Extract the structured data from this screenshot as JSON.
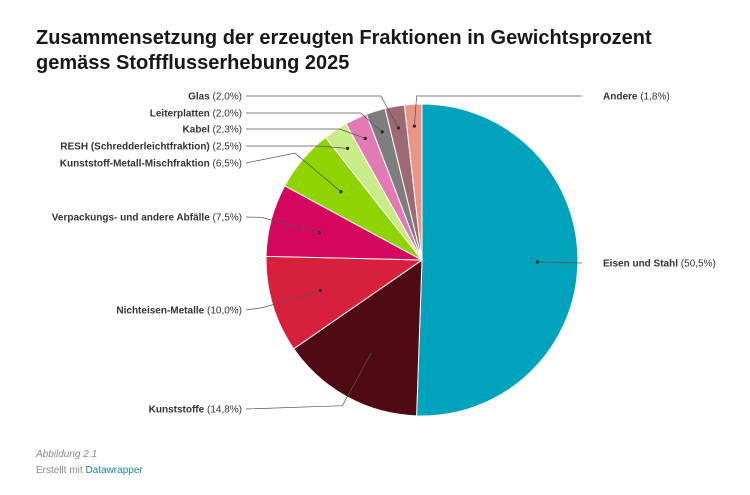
{
  "chart_data": {
    "type": "pie",
    "title": "Zusammensetzung der erzeugten Fraktionen in Gewichtsprozent gemäss Stoffflusserhebung 2025",
    "unit": "%",
    "slices": [
      {
        "name": "Eisen und Stahl",
        "value": 50.5,
        "label": "(50,5%)",
        "color": "#00a3bb"
      },
      {
        "name": "Kunststoffe",
        "value": 14.8,
        "label": "(14,8%)",
        "color": "#4f0a14"
      },
      {
        "name": "Nichteisen-Metalle",
        "value": 10.0,
        "label": "(10,0%)",
        "color": "#d8203c"
      },
      {
        "name": "Verpackungs- und andere Abfälle",
        "value": 7.5,
        "label": "(7,5%)",
        "color": "#d4065e"
      },
      {
        "name": "Kunststoff-Metall-Mischfraktion",
        "value": 6.5,
        "label": "(6,5%)",
        "color": "#8fd400"
      },
      {
        "name": "RESH (Schredderleichtfraktion)",
        "value": 2.5,
        "label": "(2,5%)",
        "color": "#c9ec88"
      },
      {
        "name": "Kabel",
        "value": 2.3,
        "label": "(2,3%)",
        "color": "#e47ab5"
      },
      {
        "name": "Leiterplatten",
        "value": 2.0,
        "label": "(2,0%)",
        "color": "#7e7e7e"
      },
      {
        "name": "Glas",
        "value": 2.0,
        "label": "(2,0%)",
        "color": "#9c6975"
      },
      {
        "name": "Andere",
        "value": 1.8,
        "label": "(1,8%)",
        "color": "#ea9585"
      }
    ]
  },
  "footer": {
    "caption": "Abbildung 2.1",
    "credit_prefix": "Erstellt mit",
    "credit_link": "Datawrapper"
  }
}
